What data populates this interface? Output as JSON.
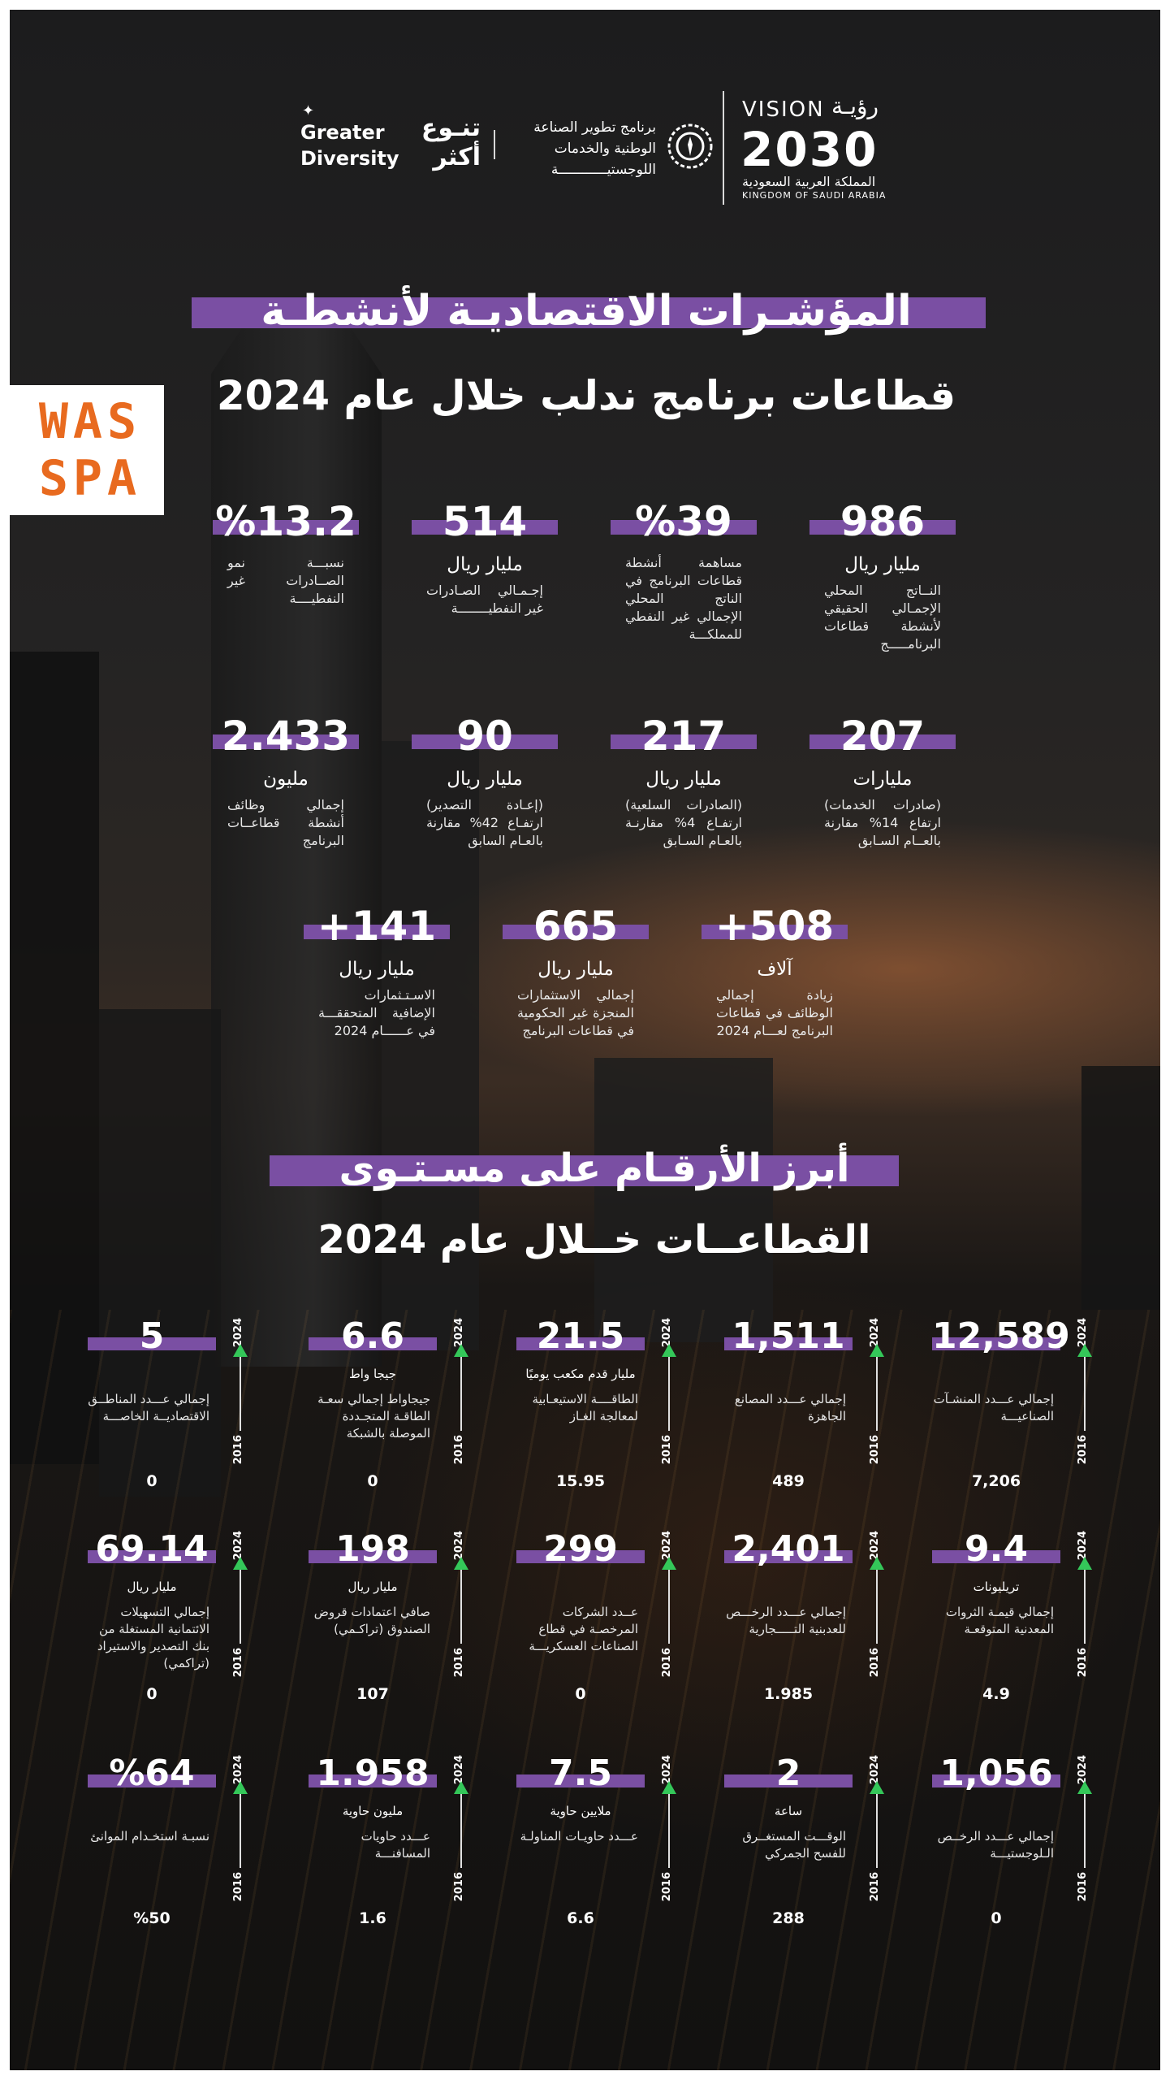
{
  "header": {
    "vision_en": "VISION",
    "vision_ar": "رؤيـة",
    "vision_year": "2030",
    "ksa_ar": "المملكة العربية السعودية",
    "ksa_en": "KINGDOM OF SAUDI ARABIA",
    "nidlp_name": "برنامج تطوير الصناعة الوطنية والخدمات اللوجستيــــــــــــة",
    "diversity_en": "Greater Diversity",
    "diversity_ar": "تنـوع أكثر"
  },
  "agency": {
    "logo_text": "WAS SPA"
  },
  "section1": {
    "title_line1": "المؤشـرات الاقتصاديـة لأنشطـة",
    "title_line2": "قطاعات برنامج ندلب خلال عام 2024",
    "kpis": [
      {
        "value": "986",
        "unit": "مليار ريال",
        "desc": "النــاتج المحلي الإجمـالي الحقيقي لأنشطة قطاعات البرنامـــــج"
      },
      {
        "value": "%39",
        "unit": "",
        "desc": "مساهمة أنشطة قطاعات البرنامج في الناتج المحلي الإجمالي غير النفطي للمملكـــة"
      },
      {
        "value": "514",
        "unit": "مليار ريال",
        "desc": "إجـمـالي الصـادرات غير النفطيــــــــة"
      },
      {
        "value": "%13.2",
        "unit": "",
        "desc": "نسبـــة نمو الصــادرات غير النفطيــــة"
      },
      {
        "value": "207",
        "unit": "مليارات",
        "desc": "(صادرات الخدمات) ارتفاع 14% مقارنة بالعــام السـابق"
      },
      {
        "value": "217",
        "unit": "مليار ريال",
        "desc": "(الصادرات السلعية) ارتفـاع 4% مقارنـة بالعـام السـابق"
      },
      {
        "value": "90",
        "unit": "مليار ريال",
        "desc": "(إعـادة التصدير) ارتفـاع 42% مقارنة بالعـام السابق"
      },
      {
        "value": "2.433",
        "unit": "مليون",
        "desc": "إجمالي وظائف أنشطة قطاعــات البرنامج"
      },
      {
        "value": "+508",
        "unit": "آلاف",
        "desc": "زيادة إجمالي الوظائف في قطاعات البرنامج لعـــام 2024"
      },
      {
        "value": "665",
        "unit": "مليار ريال",
        "desc": "إجمالي الاستثمارات المنجزة غير الحكومية في قطاعات البرنامج"
      },
      {
        "value": "+141",
        "unit": "مليار ريال",
        "desc": "الاسـتـثمارات الإضافية المتحققـــة في عــــــام 2024"
      }
    ]
  },
  "section2": {
    "title_line1": "أبرز الأرقـام على مسـتـوى",
    "title_line2": "القطاعــات خــلال عام 2024",
    "year_top": "2024",
    "year_bottom": "2016",
    "stats": [
      {
        "value": "12,589",
        "unit": "",
        "desc": "إجمالي عـــدد المنشـآت الصناعيـــة",
        "base": "7,206"
      },
      {
        "value": "1,511",
        "unit": "",
        "desc": "إجمالي عـــدد المصانع الجاهزة",
        "base": "489"
      },
      {
        "value": "21.5",
        "unit": "مليار قدم مكعب يوميًا",
        "desc": "الطاقــــة الاستيعـابية لمعالجة الغـاز",
        "base": "15.95"
      },
      {
        "value": "6.6",
        "unit": "جيجا واط",
        "desc": "جيجاواط إجمالي سعـة الطاقـة المتجـددة الموصلة بالشبكة",
        "base": "0"
      },
      {
        "value": "5",
        "unit": "",
        "desc": "إجمالي عـــدد المناطــق الاقتصاديــة الخاصـــة",
        "base": "0"
      },
      {
        "value": "9.4",
        "unit": "تريليونات",
        "desc": "إجمالي قيمـة الثروات المعدنية المتوقعـة",
        "base": "4.9"
      },
      {
        "value": "2,401",
        "unit": "",
        "desc": "إجمالي عـــدد الرخـــص للعدبنية التـــــجارية",
        "base": "1.985"
      },
      {
        "value": "299",
        "unit": "",
        "desc": "عــدد الشركات المرخصـة في قطاع الصناعات العسكريـــة",
        "base": "0"
      },
      {
        "value": "198",
        "unit": "مليار ريال",
        "desc": "صافي اعتمادات قروض الصندوق (تراكـمي)",
        "base": "107"
      },
      {
        "value": "69.14",
        "unit": "مليار ريال",
        "desc": "إجمالي التسهيلات الائتمانية المستغلة من بنك التصدير والاستيراد (تراكمي)",
        "base": "0"
      },
      {
        "value": "1,056",
        "unit": "",
        "desc": "إجمالي عـــدد الرخــص الـلوجستيـــة",
        "base": "0"
      },
      {
        "value": "2",
        "unit": "ساعة",
        "desc": "الوقـــت المستغــرق للفسح الجمركي",
        "base": "288"
      },
      {
        "value": "7.5",
        "unit": "ملايين حاوية",
        "desc": "عـــدد حاويـات المناولـة",
        "base": "6.6"
      },
      {
        "value": "1.958",
        "unit": "مليون حاوية",
        "desc": "عـــدد حاويات المسافنـــة",
        "base": "1.6"
      },
      {
        "value": "%64",
        "unit": "",
        "desc": "نسبـة استخـدام الموانئ",
        "base": "%50"
      }
    ]
  },
  "colors": {
    "accent_purple": "#7a4fa3",
    "arrow_green": "#34c759",
    "logo_orange": "#e86a1f"
  }
}
